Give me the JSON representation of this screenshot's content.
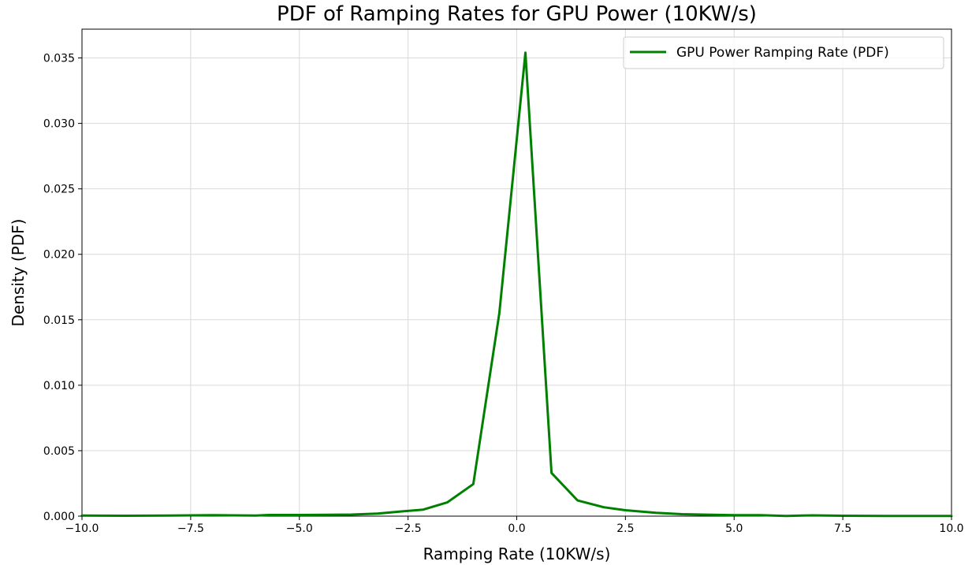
{
  "chart_data": {
    "type": "line",
    "title": "PDF of Ramping Rates for GPU Power (10KW/s)",
    "xlabel": "Ramping Rate (10KW/s)",
    "ylabel": "Density (PDF)",
    "xlim": [
      -10,
      10
    ],
    "ylim": [
      0,
      0.0372
    ],
    "xticks": [
      -10,
      -7.5,
      -5,
      -2.5,
      0,
      2.5,
      5,
      7.5,
      10
    ],
    "xtick_labels": [
      "−10.0",
      "−7.5",
      "−5.0",
      "−2.5",
      "0.0",
      "2.5",
      "5.0",
      "7.5",
      "10.0"
    ],
    "yticks": [
      0,
      0.005,
      0.01,
      0.015,
      0.02,
      0.025,
      0.03,
      0.035
    ],
    "ytick_labels": [
      "0.000",
      "0.005",
      "0.010",
      "0.015",
      "0.020",
      "0.025",
      "0.030",
      "0.035"
    ],
    "grid": true,
    "legend_position": "top-right",
    "series": [
      {
        "name": "GPU Power Ramping Rate (PDF)",
        "color": "#008000",
        "x": [
          -10.0,
          -9.0,
          -8.0,
          -7.0,
          -6.0,
          -5.7,
          -5.0,
          -4.3,
          -3.8,
          -3.2,
          -2.7,
          -2.15,
          -1.6,
          -1.0,
          -0.4,
          0.2,
          0.8,
          1.4,
          2.0,
          2.5,
          3.2,
          3.8,
          4.5,
          5.0,
          5.6,
          6.2,
          6.8,
          7.5,
          8.5,
          10.0
        ],
        "y": [
          5e-05,
          3e-05,
          5e-05,
          7e-05,
          4e-05,
          9e-05,
          9e-05,
          0.0001,
          0.00012,
          0.0002,
          0.00035,
          0.0005,
          0.00105,
          0.00245,
          0.0155,
          0.0354,
          0.0033,
          0.0012,
          0.00068,
          0.00045,
          0.00025,
          0.00015,
          0.0001,
          8e-05,
          7e-05,
          2e-05,
          6e-05,
          3e-05,
          2e-05,
          1e-05
        ]
      }
    ]
  }
}
